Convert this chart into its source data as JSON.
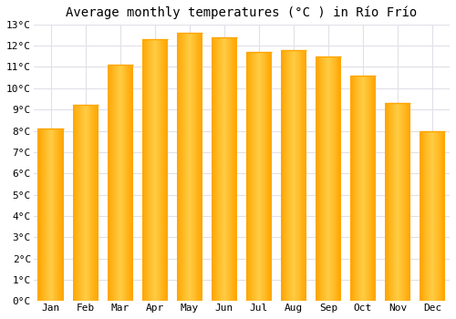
{
  "title": "Average monthly temperatures (°C ) in Río Frío",
  "months": [
    "Jan",
    "Feb",
    "Mar",
    "Apr",
    "May",
    "Jun",
    "Jul",
    "Aug",
    "Sep",
    "Oct",
    "Nov",
    "Dec"
  ],
  "values": [
    8.1,
    9.2,
    11.1,
    12.3,
    12.6,
    12.4,
    11.7,
    11.8,
    11.5,
    10.6,
    9.3,
    8.0
  ],
  "bar_color_center": "#FFCC44",
  "bar_color_edge": "#FFA500",
  "background_color": "#FFFFFF",
  "grid_color": "#E0E0E8",
  "ylim": [
    0,
    13
  ],
  "ytick_step": 1,
  "title_fontsize": 10,
  "tick_fontsize": 8,
  "font_family": "monospace"
}
